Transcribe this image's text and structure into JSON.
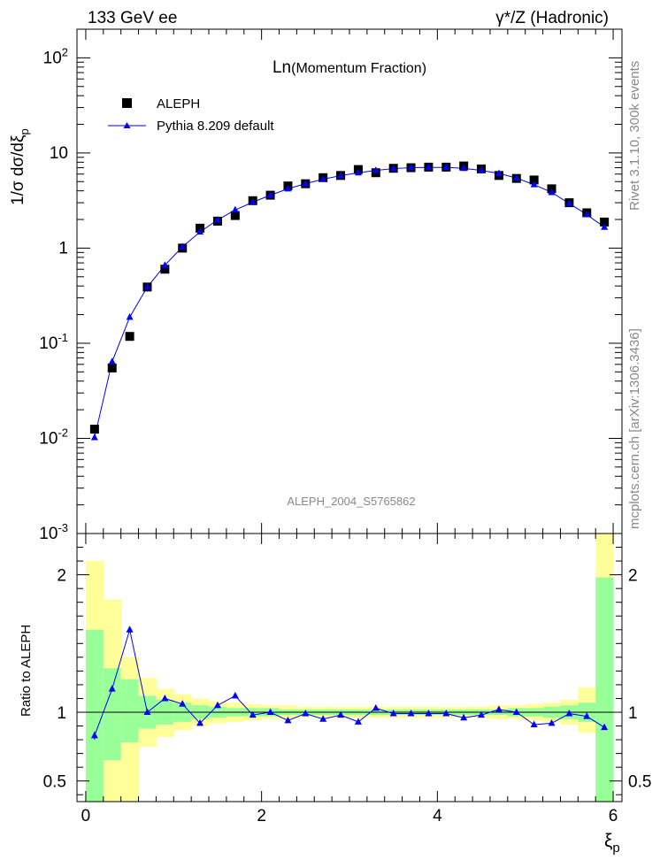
{
  "header": {
    "energy_label": "133 GeV ee",
    "process_label": "γ*/Z (Hadronic)"
  },
  "side_labels": {
    "rivet": "Rivet 3.1.10,  300k events",
    "mcplots": "mcplots.cern.ch [arXiv:1306.3436]"
  },
  "colors": {
    "data_marker": "#000000",
    "mc_line": "#0000ff",
    "band_inner": "#99ff99",
    "band_outer": "#ffff99"
  },
  "chart_data": [
    {
      "type": "scatter",
      "title": "Ln(Momentum Fraction)",
      "analysis_tag": "ALEPH_2004_S5765862",
      "ylabel": "1/σ dσ/dξp",
      "ylog": true,
      "ylim": [
        0.001,
        200
      ],
      "xlim": [
        -0.1,
        6.1
      ],
      "ytick_labels": [
        "10^-3",
        "10^-2",
        "10^-1",
        "1",
        "10",
        "10^2"
      ],
      "legend": {
        "position": "top-left",
        "entries": [
          "ALEPH",
          "Pythia 8.209 default"
        ]
      },
      "x": [
        0.1,
        0.3,
        0.5,
        0.7,
        0.9,
        1.1,
        1.3,
        1.5,
        1.7,
        1.9,
        2.1,
        2.3,
        2.5,
        2.7,
        2.9,
        3.1,
        3.3,
        3.5,
        3.7,
        3.9,
        4.1,
        4.3,
        4.5,
        4.7,
        4.9,
        5.1,
        5.3,
        5.5,
        5.7,
        5.9
      ],
      "series": [
        {
          "name": "ALEPH",
          "marker": "square",
          "values": [
            0.0125,
            0.055,
            0.118,
            0.39,
            0.6,
            1.0,
            1.62,
            1.92,
            2.2,
            3.15,
            3.6,
            4.5,
            4.75,
            5.5,
            5.8,
            6.7,
            6.2,
            6.9,
            7.0,
            7.1,
            7.1,
            7.3,
            6.8,
            5.8,
            5.4,
            5.2,
            4.2,
            3.0,
            2.35,
            1.88
          ]
        },
        {
          "name": "Pythia 8.209 default",
          "marker": "triangle",
          "values": [
            0.0102,
            0.064,
            0.188,
            0.39,
            0.66,
            1.03,
            1.48,
            1.98,
            2.52,
            3.04,
            3.6,
            4.2,
            4.75,
            5.3,
            5.78,
            6.2,
            6.55,
            6.85,
            7.0,
            7.05,
            7.05,
            6.9,
            6.55,
            6.1,
            5.45,
            4.65,
            3.85,
            2.95,
            2.25,
            1.66
          ]
        }
      ]
    },
    {
      "type": "line",
      "ylabel": "Ratio to ALEPH",
      "xlabel": "ξp",
      "ylim": [
        0.35,
        2.3
      ],
      "xlim": [
        -0.1,
        6.1
      ],
      "xtick_labels": [
        "0",
        "2",
        "4",
        "6"
      ],
      "ytick_labels": [
        "0.5",
        "1",
        "2"
      ],
      "x": [
        0.1,
        0.3,
        0.5,
        0.7,
        0.9,
        1.1,
        1.3,
        1.5,
        1.7,
        1.9,
        2.1,
        2.3,
        2.5,
        2.7,
        2.9,
        3.1,
        3.3,
        3.5,
        3.7,
        3.9,
        4.1,
        4.3,
        4.5,
        4.7,
        4.9,
        5.1,
        5.3,
        5.5,
        5.7,
        5.9
      ],
      "series": [
        {
          "name": "Pythia 8.209 default",
          "values": [
            0.83,
            1.17,
            1.6,
            1.0,
            1.1,
            1.06,
            0.92,
            1.05,
            1.12,
            0.98,
            1.0,
            0.94,
            0.99,
            0.95,
            0.98,
            0.93,
            1.03,
            0.99,
            0.99,
            0.99,
            0.99,
            0.96,
            0.98,
            1.02,
            1.0,
            0.91,
            0.92,
            0.99,
            0.97,
            0.89
          ],
          "error": [
            0.03,
            0.02,
            0.02,
            0.01,
            0.01,
            0.01,
            0.01,
            0.01,
            0.01,
            0.01,
            0.01,
            0.01,
            0.01,
            0.01,
            0.01,
            0.01,
            0.01,
            0.01,
            0.01,
            0.01,
            0.01,
            0.01,
            0.01,
            0.01,
            0.01,
            0.01,
            0.01,
            0.01,
            0.01,
            0.01
          ]
        }
      ],
      "band_inner": [
        [
          0.35,
          1.6
        ],
        [
          0.65,
          1.32
        ],
        [
          0.78,
          1.24
        ],
        [
          0.88,
          1.12
        ],
        [
          0.91,
          1.09
        ],
        [
          0.93,
          1.07
        ],
        [
          0.95,
          1.05
        ],
        [
          0.96,
          1.04
        ],
        [
          0.97,
          1.03
        ],
        [
          0.97,
          1.03
        ],
        [
          0.97,
          1.03
        ],
        [
          0.98,
          1.02
        ],
        [
          0.98,
          1.02
        ],
        [
          0.98,
          1.02
        ],
        [
          0.98,
          1.02
        ],
        [
          0.98,
          1.02
        ],
        [
          0.98,
          1.02
        ],
        [
          0.98,
          1.02
        ],
        [
          0.98,
          1.02
        ],
        [
          0.98,
          1.02
        ],
        [
          0.98,
          1.02
        ],
        [
          0.98,
          1.02
        ],
        [
          0.98,
          1.02
        ],
        [
          0.98,
          1.02
        ],
        [
          0.97,
          1.03
        ],
        [
          0.97,
          1.03
        ],
        [
          0.96,
          1.04
        ],
        [
          0.95,
          1.05
        ],
        [
          0.93,
          1.07
        ],
        [
          0.35,
          1.98
        ]
      ],
      "band_outer": [
        [
          0.35,
          2.1
        ],
        [
          0.35,
          1.82
        ],
        [
          0.35,
          1.4
        ],
        [
          0.75,
          1.25
        ],
        [
          0.82,
          1.17
        ],
        [
          0.87,
          1.13
        ],
        [
          0.9,
          1.1
        ],
        [
          0.92,
          1.08
        ],
        [
          0.93,
          1.07
        ],
        [
          0.94,
          1.06
        ],
        [
          0.95,
          1.05
        ],
        [
          0.95,
          1.05
        ],
        [
          0.96,
          1.04
        ],
        [
          0.96,
          1.04
        ],
        [
          0.96,
          1.04
        ],
        [
          0.96,
          1.04
        ],
        [
          0.96,
          1.04
        ],
        [
          0.96,
          1.04
        ],
        [
          0.96,
          1.04
        ],
        [
          0.96,
          1.04
        ],
        [
          0.96,
          1.04
        ],
        [
          0.96,
          1.04
        ],
        [
          0.96,
          1.04
        ],
        [
          0.95,
          1.05
        ],
        [
          0.95,
          1.05
        ],
        [
          0.94,
          1.06
        ],
        [
          0.93,
          1.07
        ],
        [
          0.91,
          1.09
        ],
        [
          0.85,
          1.18
        ],
        [
          0.35,
          2.3
        ]
      ]
    }
  ]
}
